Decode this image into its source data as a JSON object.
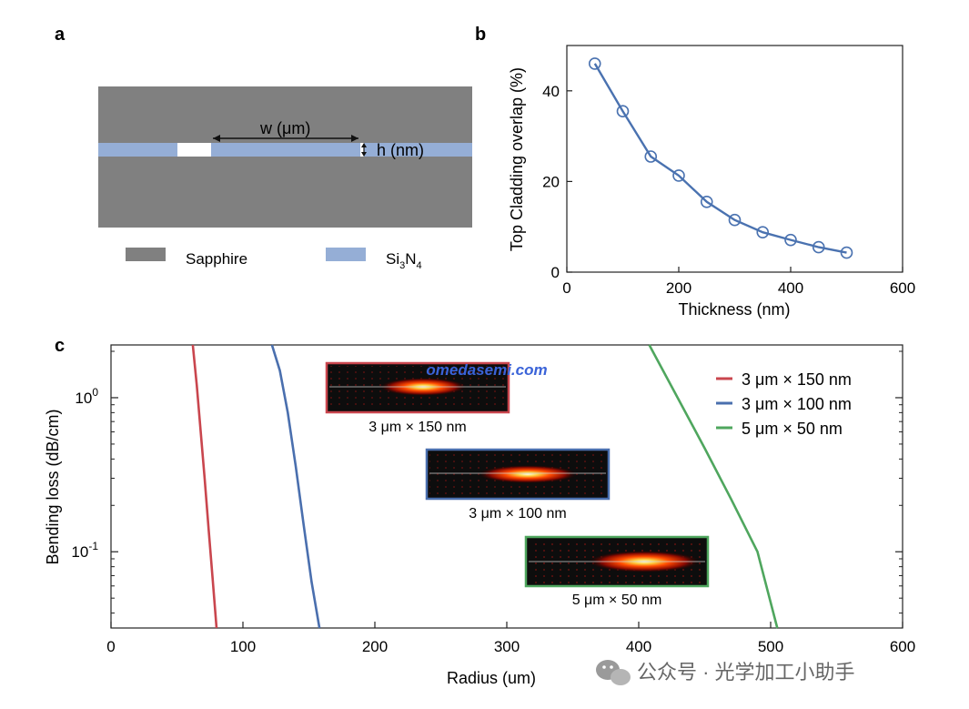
{
  "figure": {
    "panel_labels": {
      "a": "a",
      "b": "b",
      "c": "c"
    },
    "watermark": "omedasemi.com",
    "footer_text": "公众号 · 光学加工小助手"
  },
  "panel_a": {
    "w_label": "w (μm)",
    "h_label": "h (nm)",
    "legend": [
      {
        "name": "Sapphire",
        "color": "#808080"
      },
      {
        "name": "Si3N4",
        "main": "Si",
        "sub1": "3",
        "mid": "N",
        "sub2": "4",
        "color": "#95aed6"
      }
    ]
  },
  "chart_data": [
    {
      "type": "line",
      "title": "",
      "xlabel": "Thickness (nm)",
      "ylabel": "Top Cladding overlap (%)",
      "xlim": [
        0,
        600
      ],
      "ylim": [
        0,
        50
      ],
      "xticks": [
        0,
        200,
        400,
        600
      ],
      "yticks": [
        0,
        20,
        40
      ],
      "markers": "open-circle",
      "color": "#4a72b0",
      "x": [
        50,
        100,
        150,
        200,
        250,
        300,
        350,
        400,
        450,
        500
      ],
      "y": [
        46.0,
        35.5,
        25.5,
        21.3,
        15.5,
        11.5,
        8.8,
        7.1,
        5.5,
        4.3
      ]
    },
    {
      "type": "line",
      "title": "",
      "xlabel": "Radius (um)",
      "ylabel": "Bending loss (dB/cm)",
      "xlim": [
        0,
        600
      ],
      "yscale": "log",
      "ylim": [
        0.032,
        2.2
      ],
      "xticks": [
        0,
        100,
        200,
        300,
        400,
        500,
        600
      ],
      "yticks": [
        {
          "value": 1,
          "base": "10",
          "exp": "0"
        },
        {
          "value": 0.1,
          "base": "10",
          "exp": "-1"
        }
      ],
      "legend_position": "top-right",
      "series": [
        {
          "name": "3 μm × 150 nm",
          "color": "#c9464e",
          "x": [
            62,
            65,
            68,
            71,
            74,
            77,
            80
          ],
          "y": [
            2.2,
            1.2,
            0.6,
            0.3,
            0.14,
            0.068,
            0.032
          ]
        },
        {
          "name": "3 μm × 100 nm",
          "color": "#4a6fae",
          "x": [
            122,
            128,
            134,
            140,
            146,
            152,
            158
          ],
          "y": [
            2.2,
            1.5,
            0.8,
            0.36,
            0.15,
            0.064,
            0.032
          ]
        },
        {
          "name": "5 μm × 50 nm",
          "color": "#4fa65e",
          "x": [
            408,
            430,
            450,
            470,
            490,
            505
          ],
          "y": [
            2.2,
            0.98,
            0.47,
            0.22,
            0.1,
            0.032
          ]
        }
      ],
      "insets": [
        {
          "caption": "3 μm × 150 nm",
          "color": "#c9464e"
        },
        {
          "caption": "3 μm × 100 nm",
          "color": "#4a6fae"
        },
        {
          "caption": "5 μm × 50 nm",
          "color": "#4fa65e"
        }
      ]
    }
  ]
}
